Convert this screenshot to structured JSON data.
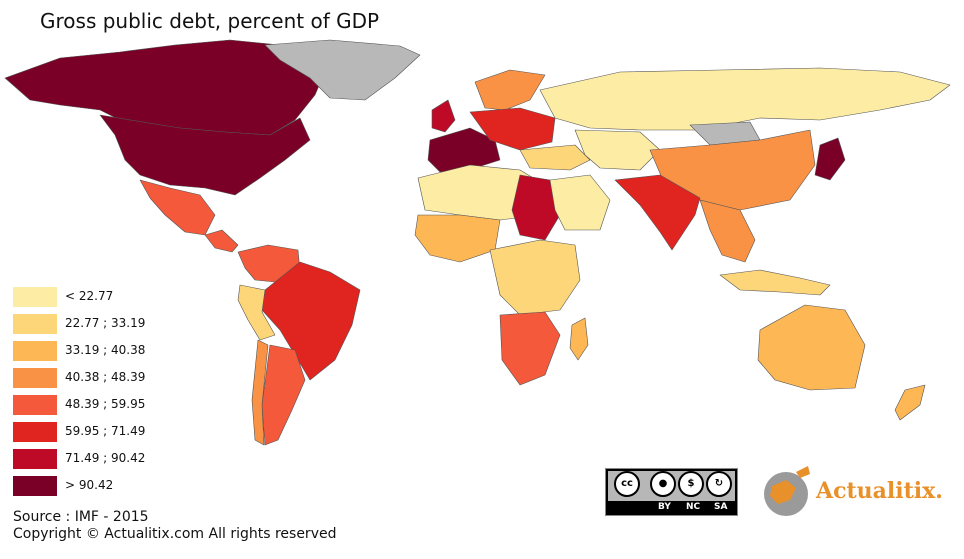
{
  "title": "Gross public debt, percent of GDP",
  "legend": [
    {
      "label": "< 22.77",
      "color": "#fdeca4"
    },
    {
      "label": "22.77 ; 33.19",
      "color": "#fdd67a"
    },
    {
      "label": "33.19 ; 40.38",
      "color": "#fdb754"
    },
    {
      "label": "40.38 ; 48.39",
      "color": "#fa9245"
    },
    {
      "label": "48.39 ; 59.95",
      "color": "#f3593a"
    },
    {
      "label": "59.95 ; 71.49",
      "color": "#e0241f"
    },
    {
      "label": "71.49 ; 90.42",
      "color": "#be0a26"
    },
    {
      "label": "> 90.42",
      "color": "#7a0028"
    }
  ],
  "no_data_color": "#b8b8b8",
  "ocean_color": "#ffffff",
  "source": "Source : IMF - 2015",
  "copyright": "Copyright © Actualitix.com All rights reserved",
  "license": {
    "by": "BY",
    "nc": "NC",
    "sa": "SA"
  },
  "brand": {
    "name": "Actualitix",
    "dot": "."
  }
}
